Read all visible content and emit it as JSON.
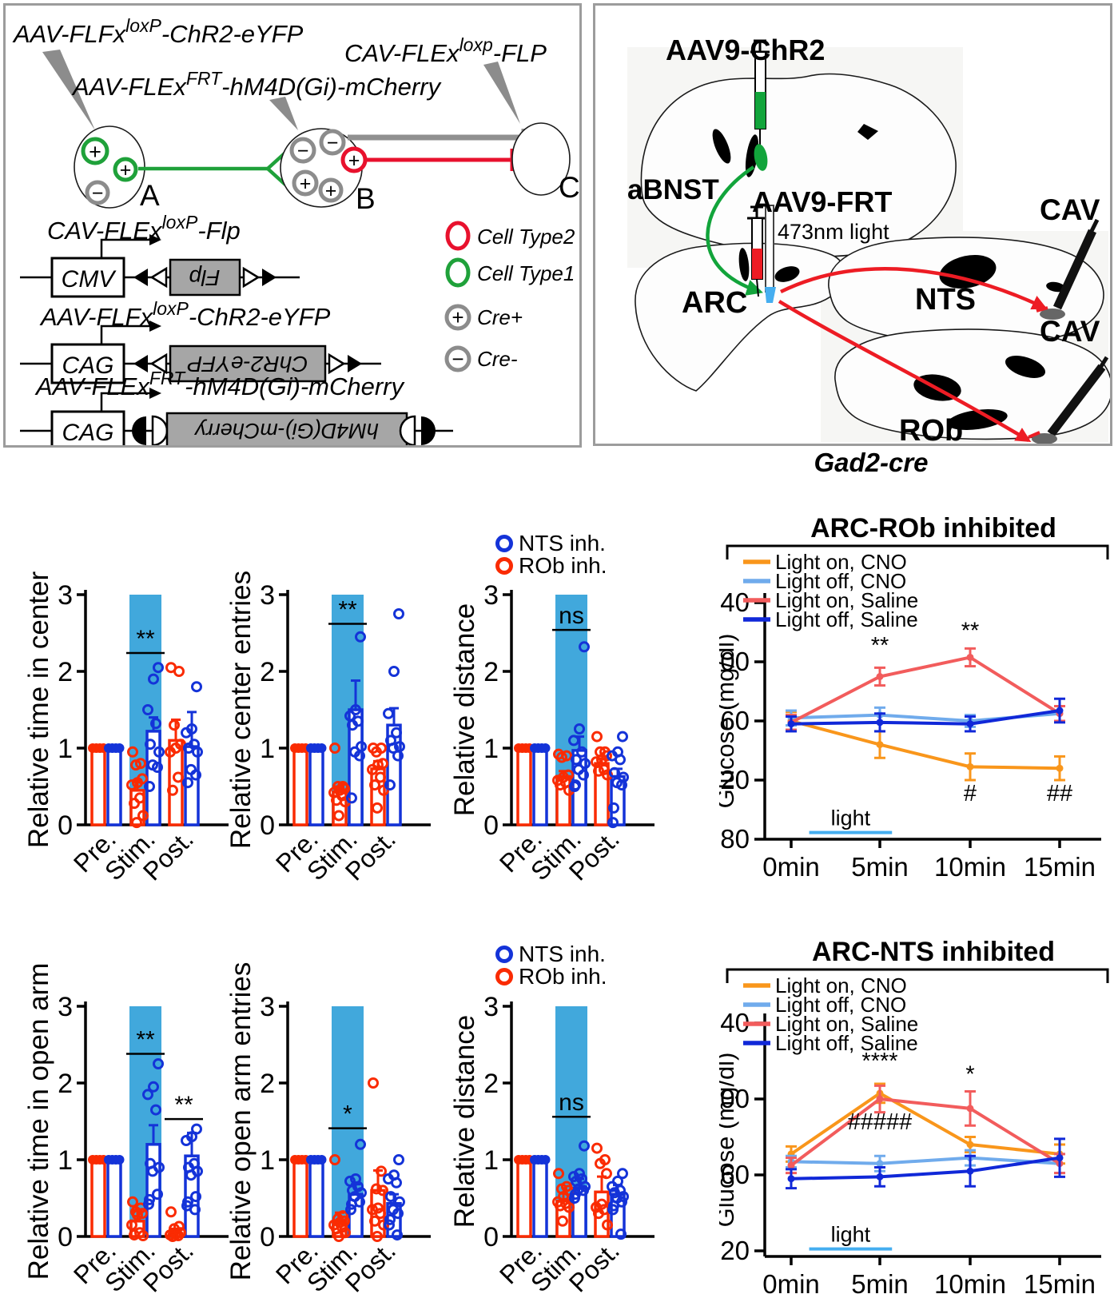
{
  "colors": {
    "red": "#FA2B02",
    "blue": "#1433D8",
    "band": "#41A8DC",
    "orange": "#F9961B",
    "light_blue_line": "#70ABEC",
    "salmon": "#F25C5C",
    "dark_blue": "#1028D8",
    "green": "#12A43B",
    "bright_red": "#ED1C24",
    "gray": "#8C8C8C",
    "light_blue": "#45AEF0"
  },
  "panel_constructs": {
    "plus": "+",
    "minus": "−",
    "top_labels": [
      {
        "pre": "AAV-FLFx",
        "sup": "loxP",
        "post": "-ChR2-eYFP"
      },
      {
        "pre": "CAV-FLEx",
        "sup": "loxp",
        "post": "-FLP"
      },
      {
        "pre": "AAV-FLEx",
        "sup": "FRT",
        "post": "-hM4D(Gi)-mCherry"
      }
    ],
    "cell_a": "A",
    "cell_b": "B",
    "cell_c": "C",
    "constructs": [
      {
        "label": {
          "pre": "CAV-FLEx",
          "sup": "loxP",
          "post": "-Flp"
        },
        "promoter": "CMV",
        "gene": "Flp"
      },
      {
        "label": {
          "pre": "AAV-FLFx",
          "sup": "loxP",
          "post": "-ChR2-eYFP"
        },
        "promoter": "CAG",
        "gene": "ChR2-eYFP"
      },
      {
        "label": {
          "pre": "AAV-FLEx",
          "sup": "FRT",
          "post": "-hM4D(Gi)-mCherry"
        },
        "promoter": "CAG",
        "gene": "hM4D(Gi)-mCherry"
      }
    ],
    "legend": [
      {
        "label": "Cell Type2"
      },
      {
        "label": "Cell Type1"
      },
      {
        "label": "Cre+"
      },
      {
        "label": "Cre-"
      }
    ]
  },
  "panel_brain": {
    "labels": {
      "aav9_chr2": "AAV9-ChR2",
      "aav9_frt": "AAV9-FRT",
      "light_473": "473nm light",
      "abnst": "aBNST",
      "arc": "ARC",
      "nts": "NTS",
      "rob": "ROb",
      "cav_top": "CAV",
      "cav_bottom": "CAV",
      "mouse_line": "Gad2-cre"
    }
  },
  "scatter_legend": {
    "items": [
      {
        "label": "NTS inh.",
        "color": "blue"
      },
      {
        "label": "ROb inh.",
        "color": "red"
      }
    ]
  },
  "chart_data": [
    {
      "id": "relative-time-in-center",
      "type": "bar",
      "ylabel": "Relative time in center",
      "ylim": [
        0,
        3
      ],
      "yticks": [
        "0",
        "1",
        "2",
        "3"
      ],
      "categories": [
        "Pre.",
        "Stim.",
        "Post."
      ],
      "band_category": 1,
      "series": [
        {
          "name": "ROb inh.",
          "color": "red",
          "values": [
            1.0,
            0.45,
            1.1
          ],
          "errors": [
            0,
            0.13,
            0.27
          ],
          "scatter": [
            [
              1,
              1,
              1,
              1
            ],
            [
              0.95,
              0.8,
              0.78,
              0.6,
              0.55,
              0.52,
              0.35,
              0.28,
              0.12,
              0.03
            ],
            [
              2.05,
              2.0,
              1.3,
              1.05,
              1.0,
              0.95,
              0.62,
              0.45
            ]
          ]
        },
        {
          "name": "NTS inh.",
          "color": "blue",
          "values": [
            1.0,
            1.22,
            1.02
          ],
          "errors": [
            0,
            0.18,
            0.45
          ],
          "scatter": [
            [
              1,
              1,
              1,
              1
            ],
            [
              2.05,
              1.9,
              1.5,
              1.32,
              1.05,
              0.95,
              0.78,
              0.75,
              0.5
            ],
            [
              1.8,
              1.25,
              1.2,
              1.05,
              1.0,
              0.95,
              0.72,
              0.65,
              0.55
            ]
          ]
        }
      ],
      "annotations": [
        {
          "category": 1,
          "text": "**",
          "line_y": 2.24
        }
      ]
    },
    {
      "id": "relative-center-entries",
      "type": "bar",
      "ylabel": "Relative center entries",
      "ylim": [
        0,
        3
      ],
      "yticks": [
        "0",
        "1",
        "2",
        "3"
      ],
      "categories": [
        "Pre.",
        "Stim.",
        "Post."
      ],
      "band_category": 1,
      "series": [
        {
          "name": "ROb inh.",
          "color": "red",
          "values": [
            1.0,
            0.43,
            0.73
          ],
          "errors": [
            0,
            0.07,
            0.1
          ],
          "scatter": [
            [
              1,
              1,
              1,
              1
            ],
            [
              1.0,
              0.5,
              0.5,
              0.47,
              0.45,
              0.42,
              0.38,
              0.32,
              0.3,
              0.12
            ],
            [
              1.0,
              1.0,
              0.95,
              0.8,
              0.78,
              0.72,
              0.62,
              0.52,
              0.45,
              0.22
            ]
          ]
        },
        {
          "name": "NTS inh.",
          "color": "blue",
          "values": [
            1.0,
            1.5,
            1.3
          ],
          "errors": [
            0,
            0.38,
            0.22
          ],
          "scatter": [
            [
              1,
              1,
              1,
              1
            ],
            [
              2.45,
              1.5,
              1.42,
              1.35,
              1.3,
              1.02,
              0.95,
              0.9,
              0.35
            ],
            [
              2.75,
              2.0,
              1.45,
              1.2,
              1.1,
              1.02,
              1.0,
              0.9,
              0.52
            ]
          ]
        }
      ],
      "annotations": [
        {
          "category": 1,
          "text": "**",
          "line_y": 2.62
        }
      ]
    },
    {
      "id": "relative-distance-center",
      "type": "bar",
      "ylabel": "Relative distance",
      "ylim": [
        0,
        3
      ],
      "yticks": [
        "0",
        "1",
        "2",
        "3"
      ],
      "categories": [
        "Pre.",
        "Stim.",
        "Post."
      ],
      "band_category": 1,
      "series": [
        {
          "name": "ROb inh.",
          "color": "red",
          "values": [
            1.0,
            0.63,
            0.8
          ],
          "errors": [
            0,
            0.07,
            0.06
          ],
          "scatter": [
            [
              1,
              1,
              1,
              1
            ],
            [
              0.92,
              0.9,
              0.88,
              0.65,
              0.62,
              0.58,
              0.55,
              0.52,
              0.45
            ],
            [
              1.15,
              0.95,
              0.95,
              0.9,
              0.85,
              0.82,
              0.72,
              0.7,
              0.65
            ]
          ]
        },
        {
          "name": "NTS inh.",
          "color": "blue",
          "values": [
            1.0,
            0.97,
            0.63
          ],
          "errors": [
            0,
            0.18,
            0.1
          ],
          "scatter": [
            [
              1,
              1,
              1,
              1
            ],
            [
              2.32,
              1.25,
              1.1,
              0.95,
              0.85,
              0.8,
              0.72,
              0.65,
              0.52,
              0.5
            ],
            [
              1.15,
              0.95,
              0.9,
              0.85,
              0.68,
              0.62,
              0.55,
              0.52,
              0.22,
              0.03
            ]
          ]
        }
      ],
      "annotations": [
        {
          "category": 1,
          "text": "ns",
          "line_y": 2.54
        }
      ]
    },
    {
      "id": "arc-rob-inhibited",
      "type": "line",
      "title": "ARC-ROb inhibited",
      "ylabel": "Glucose (mg/dl)",
      "ylim": [
        80,
        240
      ],
      "yticks": [
        80,
        120,
        160,
        200,
        240
      ],
      "x_labels": [
        "0min",
        "5min",
        "10min",
        "15min"
      ],
      "series": [
        {
          "name": "Light on, CNO",
          "color": "orange",
          "values": [
            160,
            144,
            129,
            128
          ],
          "errors": [
            6,
            9,
            9,
            8
          ]
        },
        {
          "name": "Light off, CNO",
          "color": "light_blue_line",
          "values": [
            162,
            164,
            160,
            165
          ],
          "errors": [
            5,
            5,
            4,
            5
          ]
        },
        {
          "name": "Light on, Saline",
          "color": "salmon",
          "values": [
            159,
            190,
            203,
            165
          ],
          "errors": [
            5,
            6,
            6,
            5
          ]
        },
        {
          "name": "Light off, Saline",
          "color": "dark_blue",
          "values": [
            158,
            159,
            158,
            167
          ],
          "errors": [
            5,
            6,
            5,
            8
          ]
        }
      ],
      "annotations": [
        {
          "xi": 1,
          "y": 206,
          "text": "**"
        },
        {
          "xi": 2,
          "y": 216,
          "text": "**"
        },
        {
          "xi": 2,
          "y": 106,
          "text": "#"
        },
        {
          "xi": 3,
          "y": 106,
          "text": "##"
        }
      ],
      "light_bar": {
        "label": "light",
        "x_from": 1.0,
        "x_to": 5.6,
        "y": 84.5
      }
    },
    {
      "id": "relative-time-in-open-arm",
      "type": "bar",
      "ylabel": "Relative time in open arm",
      "ylim": [
        0,
        3
      ],
      "yticks": [
        "0",
        "1",
        "2",
        "3"
      ],
      "categories": [
        "Pre.",
        "Stim.",
        "Post."
      ],
      "band_category": 1,
      "series": [
        {
          "name": "ROb inh.",
          "color": "red",
          "values": [
            1.0,
            0.2,
            0.04
          ],
          "errors": [
            0,
            0.14,
            0.06
          ],
          "scatter": [
            [
              1,
              1,
              1,
              1
            ],
            [
              0.45,
              0.37,
              0.32,
              0.3,
              0.28,
              0.15,
              0.05,
              0.02,
              0.01
            ],
            [
              0.32,
              0.13,
              0.1,
              0.05,
              0.03,
              0.02,
              0.01,
              0.0
            ]
          ]
        },
        {
          "name": "NTS inh.",
          "color": "blue",
          "values": [
            1.0,
            1.2,
            1.05
          ],
          "errors": [
            0,
            0.25,
            0.3
          ],
          "scatter": [
            [
              1,
              1,
              1,
              1
            ],
            [
              2.25,
              1.95,
              1.85,
              1.65,
              0.95,
              0.9,
              0.85,
              0.55,
              0.48,
              0.42
            ],
            [
              1.4,
              1.3,
              1.25,
              0.95,
              0.9,
              0.85,
              0.8,
              0.52,
              0.45,
              0.4,
              0.35
            ]
          ]
        }
      ],
      "annotations": [
        {
          "category": 1,
          "text": "**",
          "line_y": 2.38
        },
        {
          "category": 2,
          "text": "**",
          "line_y": 1.53
        }
      ]
    },
    {
      "id": "relative-open-arm-entries",
      "type": "bar",
      "ylabel": "Relative open arm entries",
      "ylim": [
        0,
        3
      ],
      "yticks": [
        "0",
        "1",
        "2",
        "3"
      ],
      "categories": [
        "Pre.",
        "Stim.",
        "Post."
      ],
      "band_category": 1,
      "series": [
        {
          "name": "ROb inh.",
          "color": "red",
          "values": [
            1.0,
            0.2,
            0.6
          ],
          "errors": [
            0,
            0.11,
            0.26
          ],
          "scatter": [
            [
              1,
              1,
              1,
              1
            ],
            [
              1.0,
              0.27,
              0.23,
              0.2,
              0.18,
              0.15,
              0.12,
              0.1,
              0.05,
              0.0
            ],
            [
              2.0,
              0.85,
              0.62,
              0.6,
              0.37,
              0.35,
              0.3,
              0.2,
              0.15,
              0.0
            ]
          ]
        },
        {
          "name": "NTS inh.",
          "color": "blue",
          "values": [
            1.0,
            0.55,
            0.43
          ],
          "errors": [
            0,
            0.13,
            0.12
          ],
          "scatter": [
            [
              1,
              1,
              1,
              1
            ],
            [
              1.2,
              0.75,
              0.72,
              0.65,
              0.6,
              0.57,
              0.52,
              0.45,
              0.42,
              0.35
            ],
            [
              1.0,
              0.8,
              0.75,
              0.7,
              0.52,
              0.45,
              0.35,
              0.3,
              0.22,
              0.15,
              0.02
            ]
          ]
        }
      ],
      "annotations": [
        {
          "category": 1,
          "text": "*",
          "line_y": 1.41
        }
      ]
    },
    {
      "id": "relative-distance-open",
      "type": "bar",
      "ylabel": "Relative distance",
      "ylim": [
        0,
        3
      ],
      "yticks": [
        "0",
        "1",
        "2",
        "3"
      ],
      "categories": [
        "Pre.",
        "Stim.",
        "Post."
      ],
      "band_category": 1,
      "series": [
        {
          "name": "ROb inh.",
          "color": "red",
          "values": [
            1.0,
            0.46,
            0.58
          ],
          "errors": [
            0,
            0.1,
            0.2
          ],
          "scatter": [
            [
              1,
              1,
              1,
              1
            ],
            [
              0.82,
              0.65,
              0.62,
              0.6,
              0.52,
              0.45,
              0.43,
              0.4,
              0.38,
              0.2
            ],
            [
              1.15,
              1.0,
              0.95,
              0.82,
              0.42,
              0.38,
              0.35,
              0.3,
              0.15
            ]
          ]
        },
        {
          "name": "NTS inh.",
          "color": "blue",
          "values": [
            1.0,
            0.63,
            0.55
          ],
          "errors": [
            0,
            0.12,
            0.12
          ],
          "scatter": [
            [
              1,
              1,
              1,
              1
            ],
            [
              1.18,
              0.82,
              0.78,
              0.75,
              0.72,
              0.65,
              0.62,
              0.6,
              0.55,
              0.5
            ],
            [
              0.82,
              0.72,
              0.65,
              0.6,
              0.57,
              0.52,
              0.5,
              0.45,
              0.4,
              0.35,
              0.03
            ]
          ]
        }
      ],
      "annotations": [
        {
          "category": 1,
          "text": "ns",
          "line_y": 1.56
        }
      ]
    },
    {
      "id": "arc-nts-inhibited",
      "type": "line",
      "title": "ARC-NTS inhibited",
      "ylabel": "Glucose (mg/dl)",
      "ylim": [
        120,
        240
      ],
      "yticks": [
        120,
        160,
        200,
        240
      ],
      "x_labels": [
        "0min",
        "5min",
        "10min",
        "15min"
      ],
      "series": [
        {
          "name": "Light on, CNO",
          "color": "orange",
          "values": [
            171,
            203,
            176,
            171
          ],
          "errors": [
            4,
            5,
            4,
            5
          ]
        },
        {
          "name": "Light off, CNO",
          "color": "light_blue_line",
          "values": [
            167,
            166,
            169,
            166
          ],
          "errors": [
            3,
            4,
            4,
            5
          ]
        },
        {
          "name": "Light on, Saline",
          "color": "salmon",
          "values": [
            165,
            200,
            195,
            166
          ],
          "errors": [
            4,
            7,
            9,
            5
          ]
        },
        {
          "name": "Light off, Saline",
          "color": "dark_blue",
          "values": [
            158,
            159,
            162,
            169
          ],
          "errors": [
            5,
            5,
            8,
            10
          ]
        }
      ],
      "annotations": [
        {
          "xi": 1,
          "y": 216,
          "text": "****"
        },
        {
          "xi": 1,
          "y": 184,
          "text": "#####"
        },
        {
          "xi": 2,
          "y": 209,
          "text": "*"
        }
      ],
      "light_bar": {
        "label": "light",
        "x_from": 1.0,
        "x_to": 5.6,
        "y": 121
      }
    }
  ]
}
